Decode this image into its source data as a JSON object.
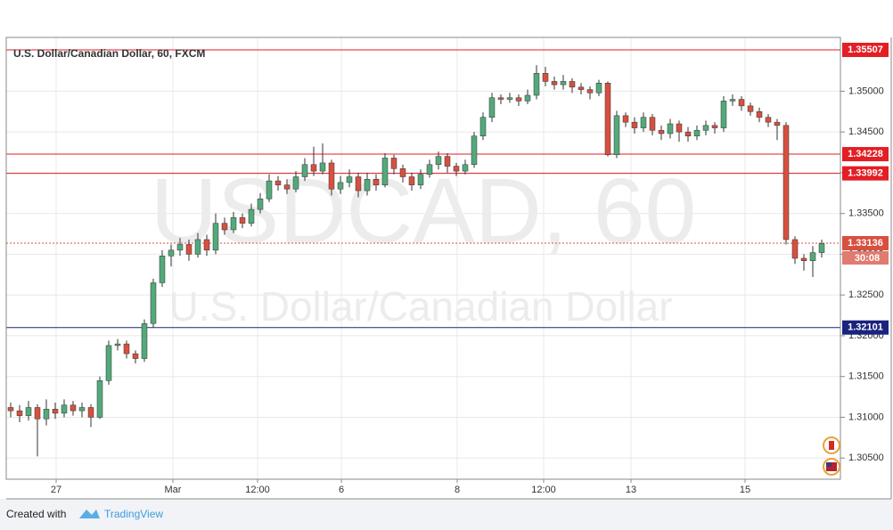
{
  "chart_data": {
    "type": "candlestick",
    "title": "U.S. Dollar/Canadian Dollar, 60, FXCM",
    "watermark": "USDCAD, 60",
    "watermark_subtitle": "U.S. Dollar/Canadian Dollar",
    "footer_prefix": "Created with",
    "footer_brand": "TradingView",
    "up_color": "#53a97a",
    "down_color": "#d7503f",
    "wick_color": "#333333",
    "grid": true,
    "xlim": [
      -0.5,
      93.1
    ],
    "ylim": [
      1.3024,
      1.3566
    ],
    "yticks": [
      {
        "value": 1.305,
        "label": "1.30500"
      },
      {
        "value": 1.31,
        "label": "1.31000"
      },
      {
        "value": 1.315,
        "label": "1.31500"
      },
      {
        "value": 1.32,
        "label": "1.32000"
      },
      {
        "value": 1.325,
        "label": "1.32500"
      },
      {
        "value": 1.33,
        "label": "1.33000"
      },
      {
        "value": 1.335,
        "label": "1.33500"
      },
      {
        "value": 1.34,
        "label": "1.34000"
      },
      {
        "value": 1.345,
        "label": "1.34500"
      },
      {
        "value": 1.35,
        "label": "1.35000"
      }
    ],
    "xticks": [
      {
        "value": 5.1,
        "label": "27"
      },
      {
        "value": 18.2,
        "label": "Mar"
      },
      {
        "value": 27.7,
        "label": "12:00"
      },
      {
        "value": 37.1,
        "label": "6"
      },
      {
        "value": 50.1,
        "label": "8"
      },
      {
        "value": 59.8,
        "label": "12:00"
      },
      {
        "value": 69.6,
        "label": "13"
      },
      {
        "value": 82.4,
        "label": "15"
      }
    ],
    "levels": [
      {
        "value": 1.35507,
        "label": "1.35507",
        "color": "#e31e24"
      },
      {
        "value": 1.34228,
        "label": "1.34228",
        "color": "#e31e24"
      },
      {
        "value": 1.33992,
        "label": "1.33992",
        "color": "#e31e24"
      },
      {
        "value": 1.32101,
        "label": "1.32101",
        "color": "#1a237e"
      }
    ],
    "last_price": {
      "value": 1.33136,
      "label": "1.33136",
      "countdown": "30:08",
      "color": "#d7503f"
    },
    "open": [
      1.3112,
      1.3108,
      1.3102,
      1.3112,
      1.3098,
      1.311,
      1.3105,
      1.3115,
      1.3108,
      1.3112,
      1.31,
      1.3145,
      1.3188,
      1.319,
      1.3178,
      1.3172,
      1.3215,
      1.3265,
      1.3298,
      1.3305,
      1.3312,
      1.33,
      1.3318,
      1.3305,
      1.3338,
      1.333,
      1.3345,
      1.3338,
      1.3355,
      1.3368,
      1.339,
      1.3385,
      1.338,
      1.3395,
      1.341,
      1.3402,
      1.3412,
      1.338,
      1.3388,
      1.3395,
      1.3378,
      1.3392,
      1.3385,
      1.3418,
      1.3405,
      1.3395,
      1.3385,
      1.3398,
      1.341,
      1.342,
      1.3408,
      1.3402,
      1.341,
      1.3445,
      1.3468,
      1.3492,
      1.349,
      1.3492,
      1.3488,
      1.3495,
      1.3522,
      1.3512,
      1.3508,
      1.3512,
      1.3505,
      1.3502,
      1.3498,
      1.351,
      1.3422,
      1.347,
      1.3462,
      1.3455,
      1.3468,
      1.3452,
      1.3448,
      1.346,
      1.345,
      1.3445,
      1.3452,
      1.3458,
      1.3455,
      1.3488,
      1.349,
      1.3482,
      1.3475,
      1.3468,
      1.3462,
      1.3458,
      1.3318,
      1.3295,
      1.3292,
      1.3302
    ],
    "high": [
      1.3118,
      1.3115,
      1.312,
      1.3116,
      1.3122,
      1.3118,
      1.3122,
      1.312,
      1.3118,
      1.3116,
      1.315,
      1.3194,
      1.3196,
      1.3194,
      1.3182,
      1.322,
      1.327,
      1.3305,
      1.3312,
      1.332,
      1.3318,
      1.3326,
      1.3324,
      1.335,
      1.3345,
      1.3352,
      1.335,
      1.3362,
      1.3375,
      1.3398,
      1.3396,
      1.3392,
      1.3402,
      1.3418,
      1.3432,
      1.3436,
      1.3416,
      1.3396,
      1.3404,
      1.34,
      1.34,
      1.3398,
      1.3424,
      1.3422,
      1.341,
      1.34,
      1.3404,
      1.3416,
      1.3426,
      1.3424,
      1.3412,
      1.3416,
      1.345,
      1.3474,
      1.3498,
      1.3496,
      1.3498,
      1.3496,
      1.3502,
      1.3532,
      1.353,
      1.3518,
      1.352,
      1.3516,
      1.351,
      1.3506,
      1.3514,
      1.3512,
      1.3476,
      1.3474,
      1.3468,
      1.3474,
      1.3472,
      1.3458,
      1.3466,
      1.3464,
      1.3456,
      1.3458,
      1.3464,
      1.3462,
      1.3494,
      1.3496,
      1.3494,
      1.3486,
      1.348,
      1.3472,
      1.3466,
      1.3462,
      1.3322,
      1.33,
      1.331,
      1.3318
    ],
    "low": [
      1.31,
      1.3094,
      1.3096,
      1.3052,
      1.309,
      1.3098,
      1.31,
      1.3102,
      1.31,
      1.3088,
      1.3098,
      1.314,
      1.3182,
      1.3172,
      1.3166,
      1.3168,
      1.321,
      1.326,
      1.3285,
      1.3298,
      1.3292,
      1.3296,
      1.3298,
      1.33,
      1.3324,
      1.3326,
      1.3332,
      1.3334,
      1.335,
      1.3364,
      1.3378,
      1.3374,
      1.3376,
      1.339,
      1.3396,
      1.3398,
      1.3372,
      1.3374,
      1.3382,
      1.337,
      1.3372,
      1.3378,
      1.3382,
      1.3398,
      1.3388,
      1.3378,
      1.338,
      1.3394,
      1.3404,
      1.34,
      1.3396,
      1.3398,
      1.3406,
      1.344,
      1.3462,
      1.3484,
      1.3486,
      1.3482,
      1.3484,
      1.349,
      1.3506,
      1.3502,
      1.3502,
      1.3498,
      1.3496,
      1.349,
      1.3494,
      1.342,
      1.3418,
      1.3456,
      1.3448,
      1.345,
      1.3446,
      1.344,
      1.3442,
      1.3438,
      1.3438,
      1.344,
      1.3446,
      1.3448,
      1.345,
      1.3482,
      1.3476,
      1.347,
      1.3462,
      1.3456,
      1.344,
      1.3312,
      1.3288,
      1.328,
      1.3272,
      1.3296
    ],
    "close": [
      1.3108,
      1.3102,
      1.3112,
      1.3098,
      1.311,
      1.3105,
      1.3115,
      1.3108,
      1.3112,
      1.31,
      1.3145,
      1.3188,
      1.319,
      1.3178,
      1.3172,
      1.3215,
      1.3265,
      1.3298,
      1.3305,
      1.3312,
      1.33,
      1.3318,
      1.3305,
      1.3338,
      1.333,
      1.3345,
      1.3338,
      1.3355,
      1.3368,
      1.339,
      1.3385,
      1.338,
      1.3395,
      1.341,
      1.3402,
      1.3412,
      1.338,
      1.3388,
      1.3395,
      1.3378,
      1.3392,
      1.3385,
      1.3418,
      1.3405,
      1.3395,
      1.3385,
      1.3398,
      1.341,
      1.342,
      1.3408,
      1.3402,
      1.341,
      1.3445,
      1.3468,
      1.3492,
      1.349,
      1.3492,
      1.3488,
      1.3495,
      1.3522,
      1.3512,
      1.3508,
      1.3512,
      1.3505,
      1.3502,
      1.3498,
      1.351,
      1.3422,
      1.347,
      1.3462,
      1.3455,
      1.3468,
      1.3452,
      1.3448,
      1.346,
      1.345,
      1.3445,
      1.3452,
      1.3458,
      1.3455,
      1.3488,
      1.349,
      1.3482,
      1.3475,
      1.3468,
      1.3462,
      1.3458,
      1.3318,
      1.3295,
      1.3292,
      1.3302,
      1.3313
    ]
  }
}
